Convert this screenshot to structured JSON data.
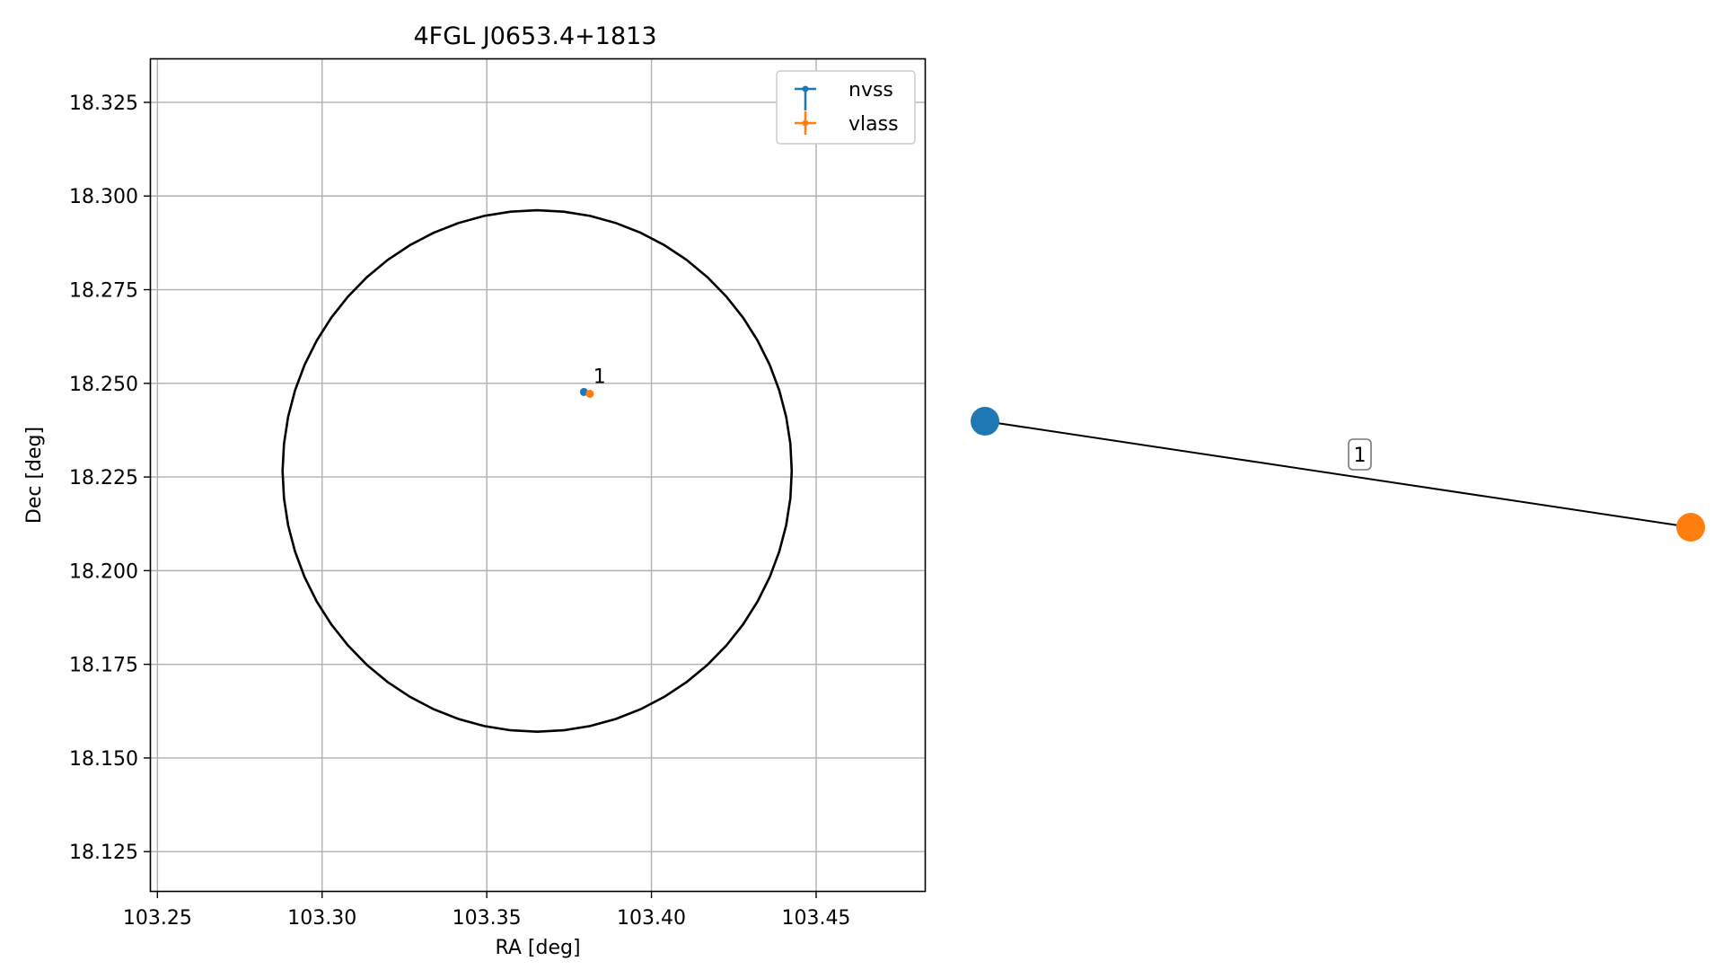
{
  "chart_data": [
    {
      "type": "scatter",
      "title": "4FGL J0653.4+1813",
      "xlabel": "RA [deg]",
      "ylabel": "Dec [deg]",
      "xlim": [
        103.248,
        103.483
      ],
      "ylim": [
        18.1145,
        18.3365
      ],
      "xticks": [
        103.25,
        103.3,
        103.35,
        103.4,
        103.45
      ],
      "xtick_labels": [
        "103.25",
        "103.30",
        "103.35",
        "103.40",
        "103.45"
      ],
      "yticks": [
        18.125,
        18.15,
        18.175,
        18.2,
        18.225,
        18.25,
        18.275,
        18.3,
        18.325
      ],
      "ytick_labels": [
        "18.125",
        "18.150",
        "18.175",
        "18.200",
        "18.225",
        "18.250",
        "18.275",
        "18.300",
        "18.325"
      ],
      "grid": true,
      "legend_position": "top-right",
      "series": [
        {
          "name": "nvss",
          "color": "#1f77b4",
          "points": [
            {
              "x": 103.3795,
              "y": 18.2477
            }
          ]
        },
        {
          "name": "vlass",
          "color": "#ff7f0e",
          "points": [
            {
              "x": 103.3813,
              "y": 18.2472
            }
          ]
        }
      ],
      "ellipse": {
        "center_ra": 103.3653,
        "center_dec": 18.2266,
        "semi_axis_ra": 0.0773,
        "semi_axis_dec": 0.0696,
        "color": "#000000"
      },
      "annotations": [
        {
          "text": "1",
          "x": 103.3815,
          "y": 18.2482
        }
      ]
    },
    {
      "type": "network",
      "nodes": [
        {
          "id": "nvss",
          "color": "#1f77b4"
        },
        {
          "id": "vlass",
          "color": "#ff7f0e"
        }
      ],
      "edges": [
        {
          "source": "nvss",
          "target": "vlass",
          "label": "1"
        }
      ]
    }
  ]
}
